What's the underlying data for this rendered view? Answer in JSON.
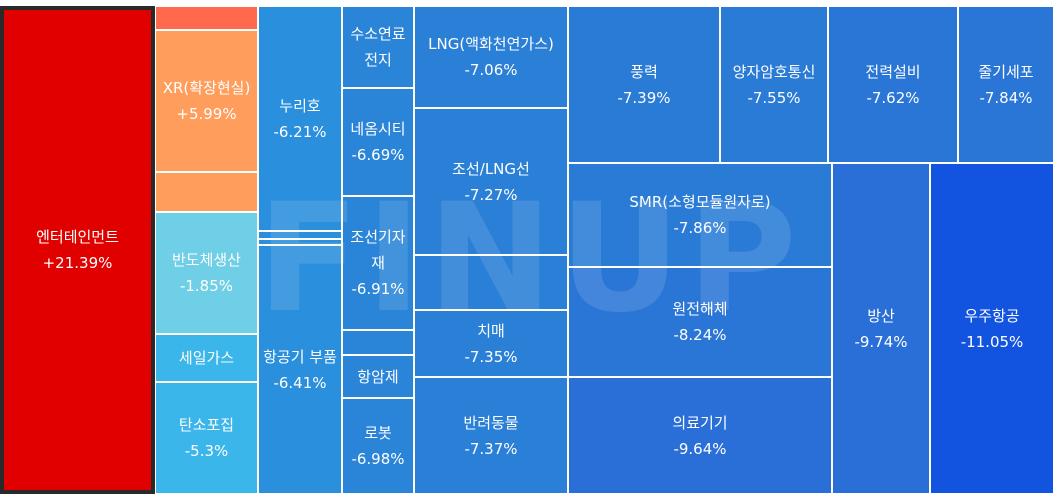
{
  "chart_data": {
    "type": "treemap",
    "tiles": [
      {
        "name": "엔터테인먼트",
        "value": "+21.39%",
        "color": "#e00000",
        "selected": true
      },
      {
        "name": "",
        "value": "",
        "color": "#ff6a4f"
      },
      {
        "name": "XR(확장현실)",
        "value": "+5.99%",
        "color": "#ff9d5c"
      },
      {
        "name": "",
        "value": "",
        "color": "#ff9d5c"
      },
      {
        "name": "반도체생산",
        "value": "-1.85%",
        "color": "#6ecfe6"
      },
      {
        "name": "세일가스",
        "value": "",
        "color": "#3ab6ea"
      },
      {
        "name": "탄소포집",
        "value": "-5.3%",
        "color": "#3ab6ea"
      },
      {
        "name": "누리호",
        "value": "-6.21%",
        "color": "#2a8fdc"
      },
      {
        "name": "",
        "value": "",
        "color": "#2a8fdc"
      },
      {
        "name": "",
        "value": "",
        "color": "#2a8fdc"
      },
      {
        "name": "항공기 부품",
        "value": "-6.41%",
        "color": "#2a8fdc"
      },
      {
        "name": "수소연료전지",
        "value": "",
        "color": "#2a85d8"
      },
      {
        "name": "네옴시티",
        "value": "-6.69%",
        "color": "#2a85d8"
      },
      {
        "name": "조선기자재",
        "value": "-6.91%",
        "color": "#2a85d8"
      },
      {
        "name": "",
        "value": "",
        "color": "#2a85d8"
      },
      {
        "name": "항암제",
        "value": "",
        "color": "#2a85d8"
      },
      {
        "name": "로봇",
        "value": "-6.98%",
        "color": "#2a85d8"
      },
      {
        "name": "LNG(액화천연가스)",
        "value": "-7.06%",
        "color": "#2a7fd6"
      },
      {
        "name": "조선/LNG선",
        "value": "-7.27%",
        "color": "#2a7fd6"
      },
      {
        "name": "",
        "value": "",
        "color": "#2a7fd6"
      },
      {
        "name": "치매",
        "value": "-7.35%",
        "color": "#2a7fd6"
      },
      {
        "name": "반려동물",
        "value": "-7.37%",
        "color": "#2a7fd6"
      },
      {
        "name": "풍력",
        "value": "-7.39%",
        "color": "#2a7bd6"
      },
      {
        "name": "양자암호통신",
        "value": "-7.55%",
        "color": "#2a7bd6"
      },
      {
        "name": "전력설비",
        "value": "-7.62%",
        "color": "#2a76d6"
      },
      {
        "name": "줄기세포",
        "value": "-7.84%",
        "color": "#2a76d6"
      },
      {
        "name": "SMR(소형모듈원자로)",
        "value": "-7.86%",
        "color": "#2a7bd6"
      },
      {
        "name": "원전해체",
        "value": "-8.24%",
        "color": "#2a76d6"
      },
      {
        "name": "의료기기",
        "value": "-9.64%",
        "color": "#2a6fd8"
      },
      {
        "name": "방산",
        "value": "-9.74%",
        "color": "#2a6fd8"
      },
      {
        "name": "우주항공",
        "value": "-11.05%",
        "color": "#1253e0"
      }
    ]
  },
  "watermark": "FINUP"
}
